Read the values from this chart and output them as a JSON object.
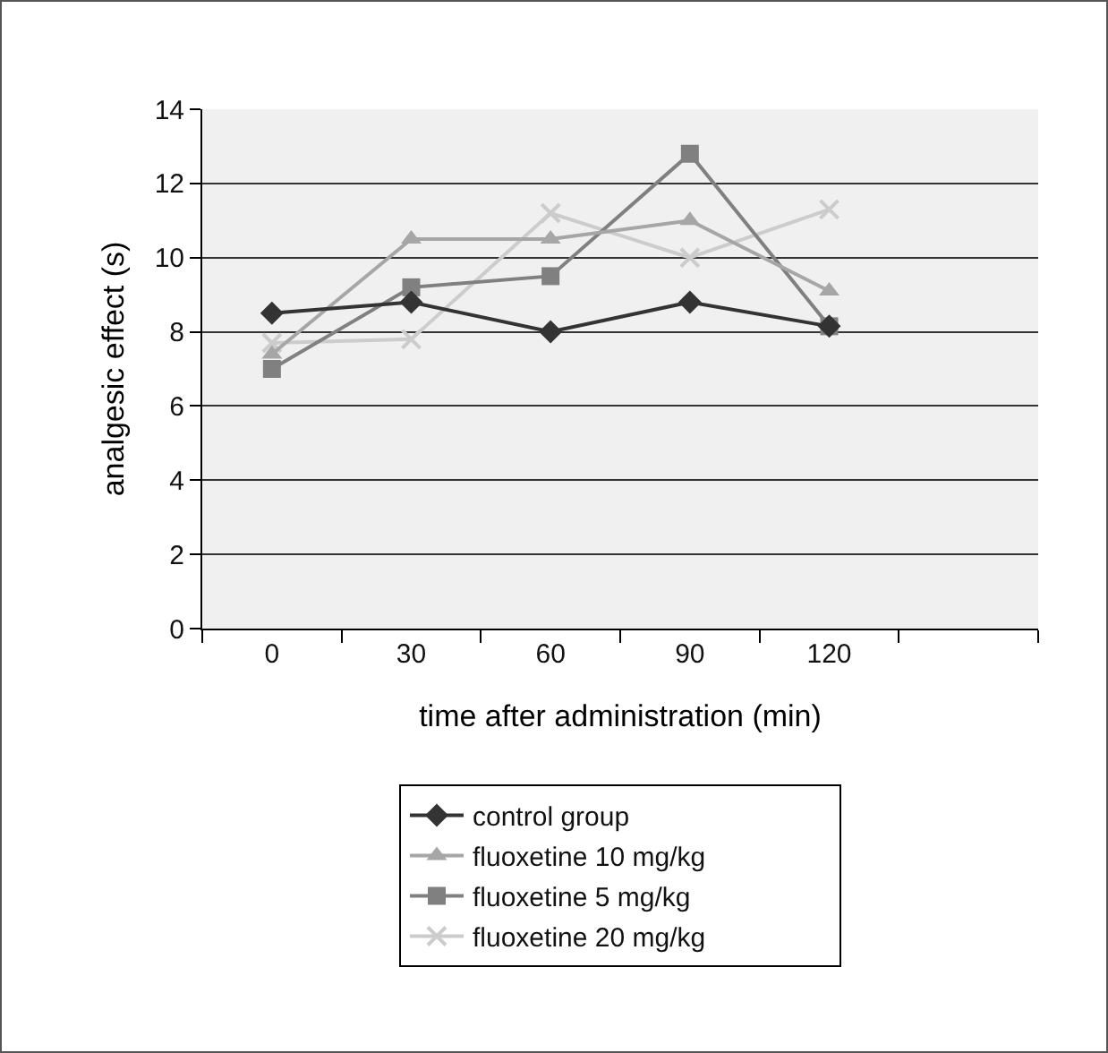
{
  "chart_data": {
    "type": "line",
    "xlabel": "time after administration (min)",
    "ylabel": "analgesic effect (s)",
    "categories": [
      "0",
      "30",
      "60",
      "90",
      "120",
      null
    ],
    "series": [
      {
        "name": "control group",
        "color": "#333333",
        "marker": "diamond",
        "values": [
          8.5,
          8.8,
          8.0,
          8.8,
          8.15,
          null
        ]
      },
      {
        "name": "fluoxetine 10 mg/kg",
        "color": "#a6a6a6",
        "marker": "triangle",
        "values": [
          7.4,
          10.5,
          10.5,
          11.0,
          9.1,
          null
        ]
      },
      {
        "name": "fluoxetine 5 mg/kg",
        "color": "#808080",
        "marker": "square",
        "values": [
          7.0,
          9.2,
          9.5,
          12.8,
          8.15,
          null
        ]
      },
      {
        "name": "fluoxetine 20 mg/kg",
        "color": "#cccccc",
        "marker": "cross",
        "values": [
          7.7,
          7.8,
          11.2,
          10.0,
          11.3,
          null
        ]
      }
    ],
    "ylim": [
      0,
      14
    ],
    "yticks": [
      0,
      2,
      4,
      6,
      8,
      10,
      12,
      14
    ],
    "grid": "y",
    "legend": "bottom",
    "line_style": "solid"
  }
}
